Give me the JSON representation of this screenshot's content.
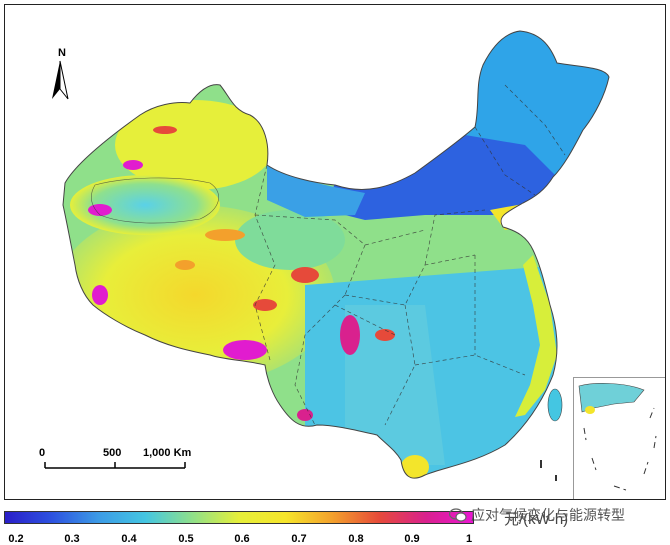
{
  "map": {
    "north_label": "N",
    "scale_labels": [
      "0",
      "500",
      "1,000 Km"
    ],
    "unit": "元/(kW·h)",
    "watermark": "应对气候变化与能源转型"
  },
  "legend": {
    "ticks": [
      "0.2",
      "0.3",
      "0.4",
      "0.5",
      "0.6",
      "0.7",
      "0.8",
      "0.9",
      "1"
    ],
    "colors": [
      "#2a1ec8",
      "#2d52e0",
      "#3c9be6",
      "#44c6e2",
      "#8fe08a",
      "#e6ef3a",
      "#f6e52b",
      "#f3a02c",
      "#e64a3a",
      "#d9218e",
      "#ea16d2"
    ]
  }
}
